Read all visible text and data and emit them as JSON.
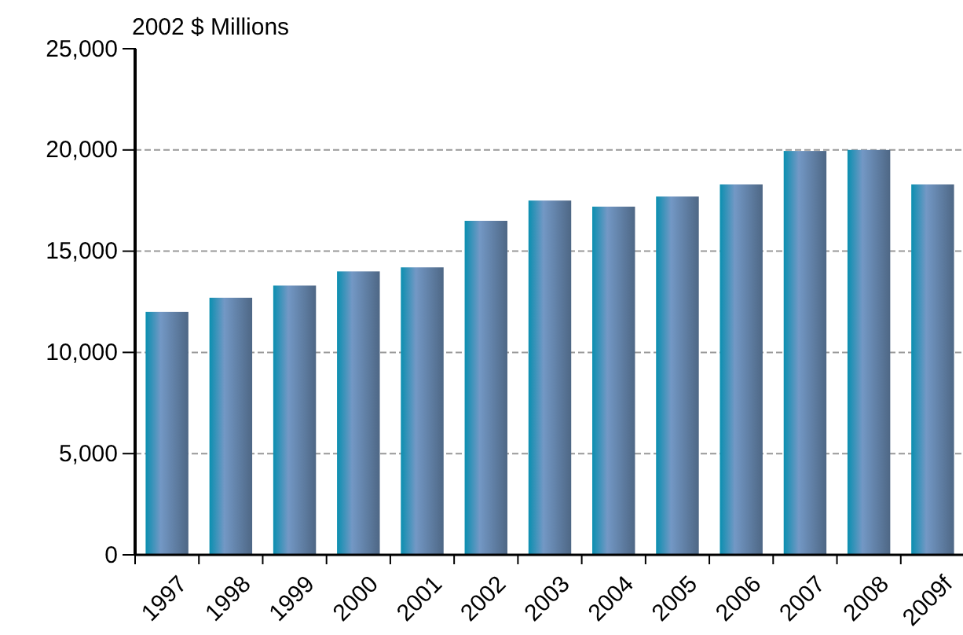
{
  "chart_data": {
    "type": "bar",
    "ylabel": "2002 $ Millions",
    "categories": [
      "1997",
      "1998",
      "1999",
      "2000",
      "2001",
      "2002",
      "2003",
      "2004",
      "2005",
      "2006",
      "2007",
      "2008",
      "2009f"
    ],
    "values": [
      12000,
      12700,
      13300,
      14000,
      14200,
      16500,
      17500,
      17200,
      17700,
      18300,
      19950,
      20000,
      18300
    ],
    "color": "#4e6785",
    "ylim": [
      0,
      25000
    ],
    "yticks": [
      {
        "value": 0,
        "label": "0"
      },
      {
        "value": 5000,
        "label": "5,000"
      },
      {
        "value": 10000,
        "label": "10,000"
      },
      {
        "value": 15000,
        "label": "15,000"
      },
      {
        "value": 20000,
        "label": "20,000"
      },
      {
        "value": 25000,
        "label": "25,000"
      }
    ],
    "grid": "y"
  }
}
